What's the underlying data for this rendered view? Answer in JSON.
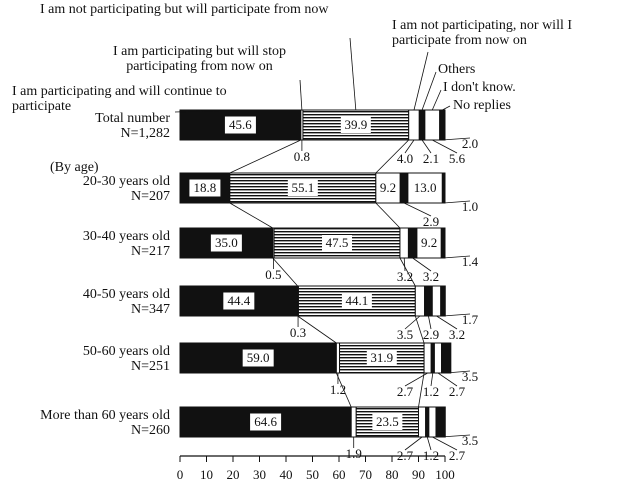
{
  "chart_data": {
    "type": "stacked-barh",
    "group_label": "(By age)",
    "categories": [
      "Total number\nN=1,282",
      "20-30 years old\nN=207",
      "30-40 years old\nN=217",
      "40-50 years old\nN=347",
      "50-60 years old\nN=251",
      "More than 60 years old\nN=260"
    ],
    "series": [
      {
        "name": "I am participating and will continue to participate",
        "color": "#111111",
        "pattern": "solid",
        "values": [
          45.6,
          18.8,
          35.0,
          44.4,
          59.0,
          64.6
        ],
        "value_labels": [
          "45.6",
          "18.8",
          "35.0",
          "44.4",
          "59.0",
          "64.6"
        ]
      },
      {
        "name": "I am participating but will stop participating from now on",
        "color": "#ffffff",
        "pattern": "solid",
        "values": [
          0.8,
          null,
          0.5,
          0.3,
          1.2,
          1.9
        ],
        "value_labels": [
          "0.8",
          null,
          "0.5",
          "0.3",
          "1.2",
          "1.9"
        ]
      },
      {
        "name": "I am not participating but will participate from now",
        "color": "#111111",
        "pattern": "horizontal-lines",
        "values": [
          39.9,
          55.1,
          47.5,
          44.1,
          31.9,
          23.5
        ],
        "value_labels": [
          "39.9",
          "55.1",
          "47.5",
          "44.1",
          "31.9",
          "23.5"
        ]
      },
      {
        "name": "I am not participating, nor will I participate from now on",
        "color": "#ffffff",
        "pattern": "solid",
        "values": [
          4.0,
          9.2,
          3.2,
          3.5,
          2.7,
          2.7
        ],
        "value_labels": [
          "4.0",
          "9.2",
          "3.2",
          "3.5",
          "2.7",
          "2.7"
        ]
      },
      {
        "name": "Others",
        "color": "#111111",
        "pattern": "solid",
        "values": [
          2.1,
          2.9,
          3.2,
          2.9,
          1.2,
          1.2
        ],
        "value_labels": [
          "2.1",
          "2.9",
          "3.2",
          "2.9",
          "1.2",
          "1.2"
        ]
      },
      {
        "name": "I don't know.",
        "color": "#ffffff",
        "pattern": "solid",
        "values": [
          5.6,
          13.0,
          9.2,
          3.2,
          2.7,
          2.7
        ],
        "value_labels": [
          "5.6",
          "13.0",
          "9.2",
          "3.2",
          "2.7",
          "2.7"
        ]
      },
      {
        "name": "No replies",
        "color": "#111111",
        "pattern": "solid",
        "values": [
          2.0,
          1.0,
          1.4,
          1.7,
          3.5,
          3.5
        ],
        "value_labels": [
          "2.0",
          "1.0",
          "1.4",
          "1.7",
          "3.5",
          "3.5"
        ]
      }
    ],
    "xlim": [
      0,
      100
    ],
    "xticks": [
      0,
      10,
      20,
      30,
      40,
      50,
      60,
      70,
      80,
      90,
      100
    ],
    "grid": false
  }
}
